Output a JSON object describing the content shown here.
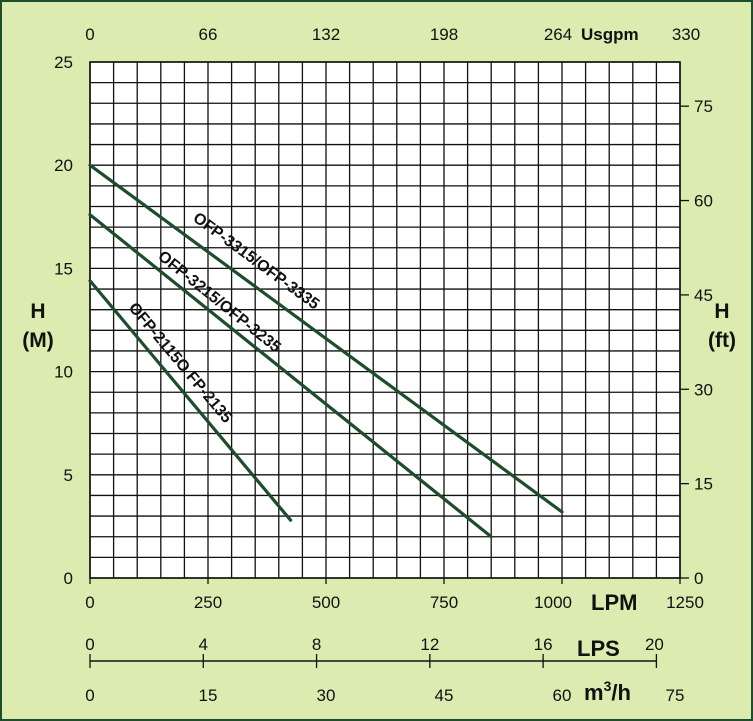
{
  "chart_data": {
    "type": "line",
    "colors": {
      "background": "#dcecb0",
      "grid": "#111111",
      "series": "#1d4d2b",
      "frame": "#1d4d2b"
    },
    "grid": true,
    "x_axis": {
      "ticks": [
        "0",
        "250",
        "500",
        "750",
        "1000",
        "1250"
      ],
      "unit": "LPM",
      "range": [
        0,
        1250
      ]
    },
    "y_axis": {
      "ticks": [
        "0",
        "5",
        "10",
        "15",
        "20",
        "25"
      ],
      "label_line1": "H",
      "label_line2": "(M)",
      "range": [
        0,
        25
      ]
    },
    "top_axis": {
      "ticks": [
        "0",
        "66",
        "132",
        "198",
        "264",
        "330"
      ],
      "unit": "Usgpm"
    },
    "right_axis": {
      "ticks": [
        "0",
        "15",
        "30",
        "45",
        "60",
        "75"
      ],
      "label_line1": "H",
      "label_line2": "(ft)"
    },
    "lps_axis": {
      "ticks": [
        "0",
        "4",
        "8",
        "12",
        "16",
        "20"
      ],
      "unit": "LPS"
    },
    "m3h_axis": {
      "ticks": [
        "0",
        "15",
        "30",
        "45",
        "60",
        "75"
      ],
      "unit_base": "m",
      "unit_sup": "3",
      "unit_tail": "/h"
    },
    "series": [
      {
        "name": "OFP-3315/OFP-3335",
        "x": [
          0,
          1000
        ],
        "y": [
          20.0,
          3.2
        ]
      },
      {
        "name": "OFP-3215/OFP-3235",
        "x": [
          0,
          850
        ],
        "y": [
          17.6,
          2.0
        ]
      },
      {
        "name": "OFP-2115O FP-2135",
        "x": [
          0,
          425
        ],
        "y": [
          14.4,
          2.8
        ]
      }
    ]
  }
}
